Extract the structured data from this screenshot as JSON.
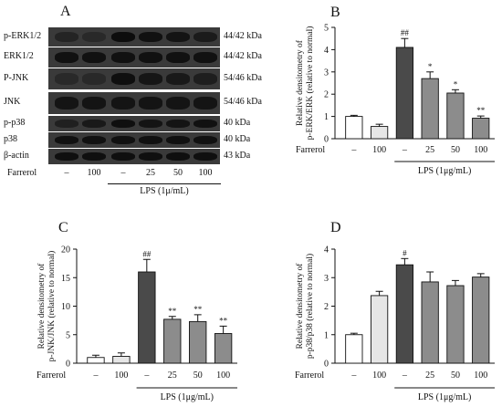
{
  "panel_a": {
    "letter": "A",
    "blots": [
      {
        "name": "p-ERK1/2",
        "kda": "44/42 kDa",
        "intensity": [
          0.45,
          0.35,
          0.95,
          0.85,
          0.8,
          0.65
        ]
      },
      {
        "name": "ERK1/2",
        "kda": "44/42 kDa",
        "intensity": [
          0.85,
          0.85,
          0.85,
          0.85,
          0.85,
          0.85
        ]
      },
      {
        "name": "P-JNK",
        "kda": "54/46 kDa",
        "intensity": [
          0.35,
          0.35,
          0.9,
          0.75,
          0.7,
          0.6
        ]
      },
      {
        "name": "JNK",
        "kda": "54/46 kDa",
        "intensity": [
          0.8,
          0.8,
          0.8,
          0.8,
          0.8,
          0.8
        ]
      },
      {
        "name": "p-p38",
        "kda": "40 kDa",
        "intensity": [
          0.55,
          0.7,
          0.9,
          0.8,
          0.8,
          0.85
        ]
      },
      {
        "name": "p38",
        "kda": "40 kDa",
        "intensity": [
          0.85,
          0.85,
          0.85,
          0.85,
          0.85,
          0.85
        ]
      },
      {
        "name": "β-actin",
        "kda": "43 kDa",
        "intensity": [
          0.9,
          0.9,
          0.9,
          0.9,
          0.9,
          0.9
        ]
      }
    ],
    "treatment_label": "Farrerol",
    "treatment_values": [
      "–",
      "100",
      "–",
      "25",
      "50",
      "100"
    ],
    "lps_label": "LPS (1μ/mL)"
  },
  "chart_data": [
    {
      "panel": "B",
      "type": "bar",
      "ylabel": "Relative densitometry of p-ERK/ERK (relative to normal)",
      "ylim": [
        0,
        5
      ],
      "yticks": [
        "0",
        "1",
        "2",
        "3",
        "4",
        "5"
      ],
      "values": [
        1.0,
        0.55,
        4.1,
        2.7,
        2.05,
        0.92
      ],
      "errors": [
        0.05,
        0.1,
        0.4,
        0.3,
        0.15,
        0.1
      ],
      "sig": [
        "",
        "",
        "##",
        "*",
        "*",
        "**"
      ],
      "treatment_label": "Farrerol",
      "treatment_values": [
        "–",
        "100",
        "–",
        "25",
        "50",
        "100"
      ],
      "lps_label": "LPS (1μg/mL)"
    },
    {
      "panel": "C",
      "type": "bar",
      "ylabel": "Relative densitometry of p-JNK/JNK (relative to normal)",
      "ylim": [
        0,
        20
      ],
      "yticks": [
        "0",
        "5",
        "10",
        "15",
        "20"
      ],
      "values": [
        1.0,
        1.2,
        16.0,
        7.7,
        7.3,
        5.2
      ],
      "errors": [
        0.4,
        0.6,
        2.2,
        0.5,
        1.2,
        1.3
      ],
      "sig": [
        "",
        "",
        "##",
        "**",
        "**",
        "**"
      ],
      "treatment_label": "Farrerol",
      "treatment_values": [
        "–",
        "100",
        "–",
        "25",
        "50",
        "100"
      ],
      "lps_label": "LPS (1μg/mL)"
    },
    {
      "panel": "D",
      "type": "bar",
      "ylabel": "Relative densitometry of p-p38/p38 (relative to normal)",
      "ylim": [
        0,
        4
      ],
      "yticks": [
        "0",
        "1",
        "2",
        "3",
        "4"
      ],
      "values": [
        1.0,
        2.37,
        3.45,
        2.85,
        2.72,
        3.02
      ],
      "errors": [
        0.05,
        0.15,
        0.22,
        0.35,
        0.18,
        0.12
      ],
      "sig": [
        "",
        "",
        "#",
        "",
        "",
        ""
      ],
      "treatment_label": "Farrerol",
      "treatment_values": [
        "–",
        "100",
        "–",
        "25",
        "50",
        "100"
      ],
      "lps_label": "LPS (1μg/mL)"
    }
  ],
  "colors": {
    "bars": [
      "#ffffff",
      "#e6e6e6",
      "#4a4a4a",
      "#8c8c8c",
      "#8c8c8c",
      "#8c8c8c"
    ],
    "stroke": "#111111"
  }
}
